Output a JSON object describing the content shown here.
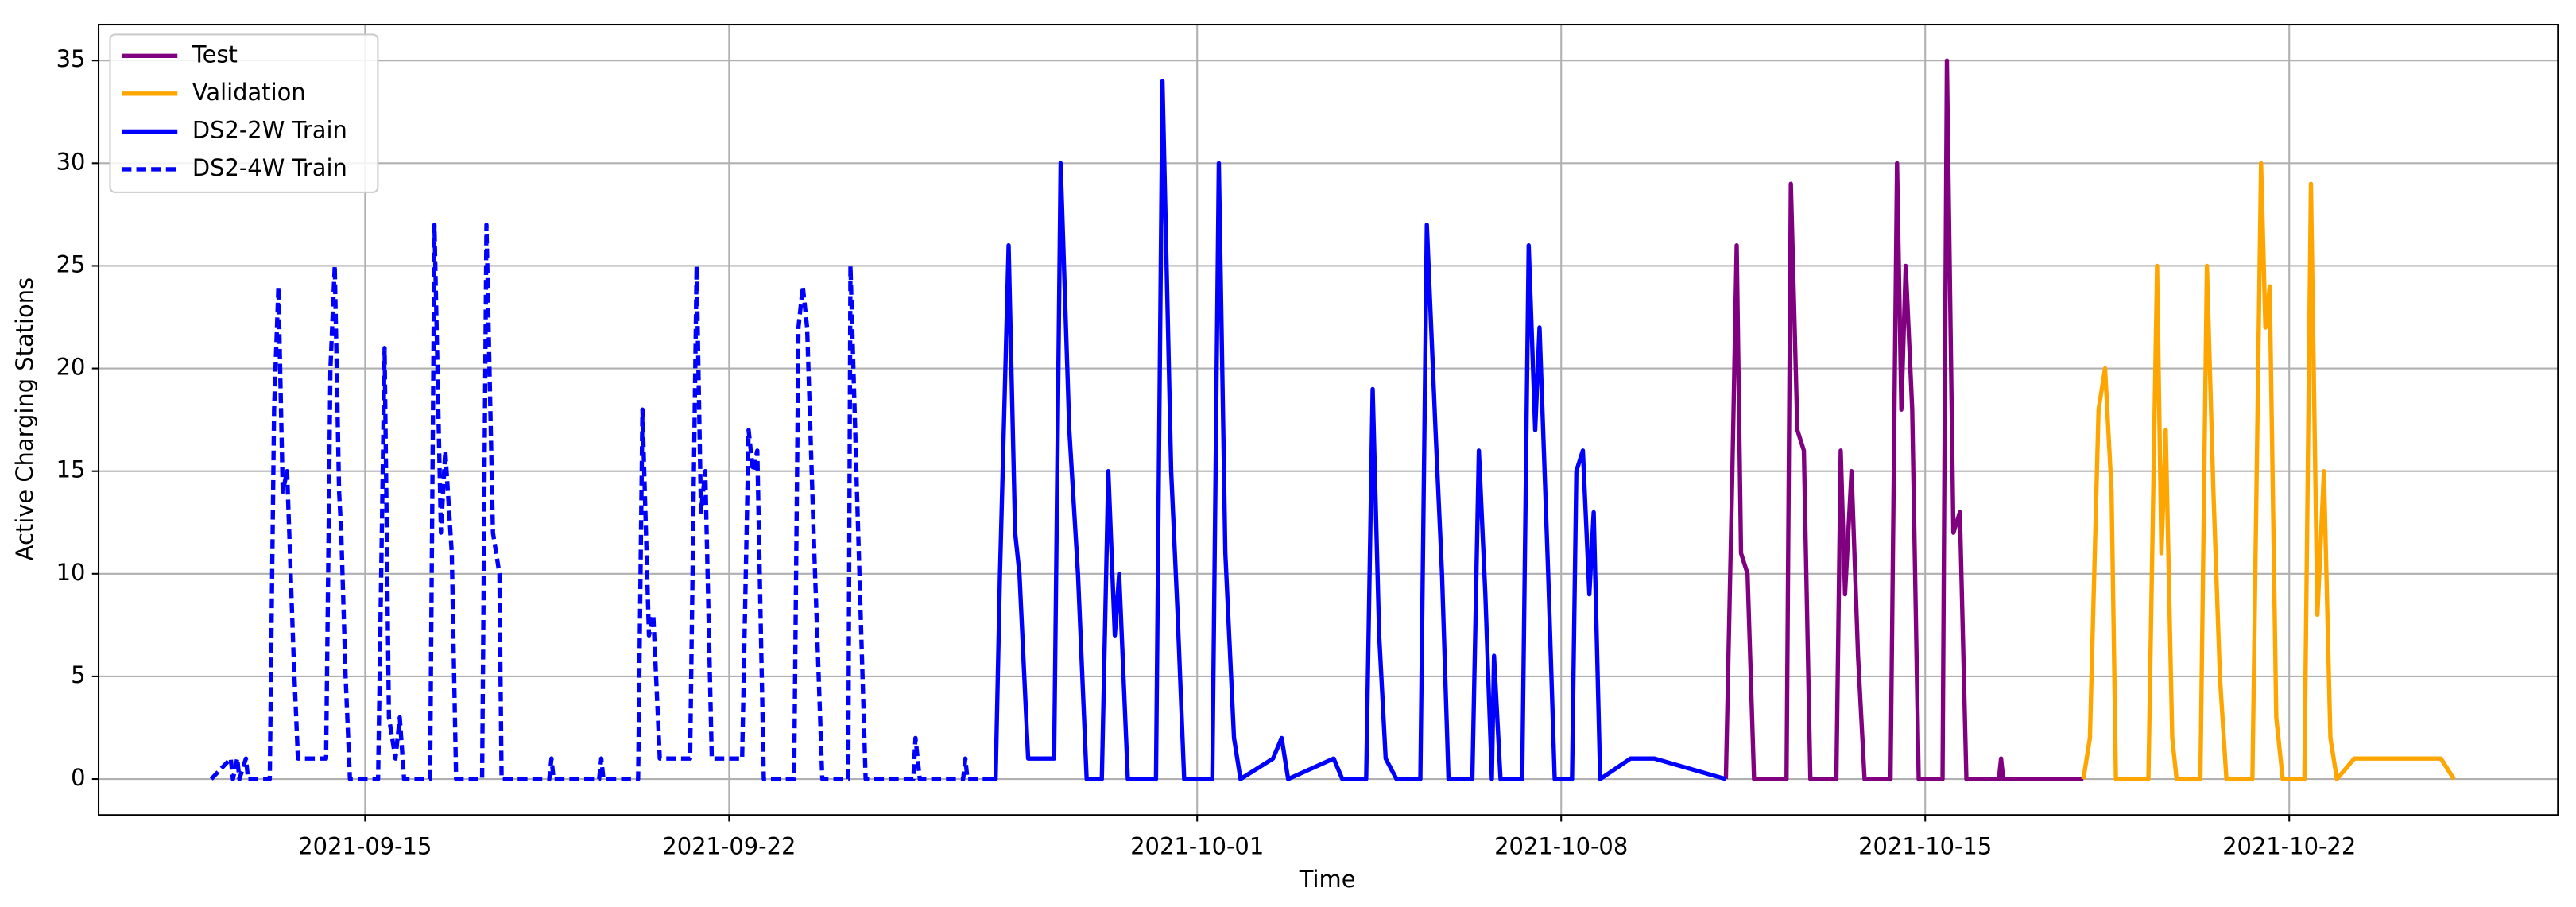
{
  "chart_data": {
    "type": "line",
    "x_label": "Time",
    "y_label": "Active Charging Stations",
    "grid": true,
    "legend": "upper left",
    "xlim": [
      "2021-09-09 21:00",
      "2021-10-27 04:00"
    ],
    "ylim": [
      -1.75,
      36.75
    ],
    "xticks": [
      "2021-09-15",
      "2021-09-22",
      "2021-10-01",
      "2021-10-08",
      "2021-10-15",
      "2021-10-22"
    ],
    "yticks": [
      0,
      5,
      10,
      15,
      20,
      25,
      30,
      35
    ],
    "series": [
      {
        "name": "Test",
        "color": "#800080",
        "dash": false,
        "x": [
          "2021-10-11 04:00",
          "2021-10-11 07:00",
          "2021-10-11 09:00",
          "2021-10-11 11:00",
          "2021-10-11 14:00",
          "2021-10-11 17:00",
          "2021-10-12 08:00",
          "2021-10-12 10:00",
          "2021-10-12 13:00",
          "2021-10-12 16:00",
          "2021-10-12 19:00",
          "2021-10-13 07:00",
          "2021-10-13 09:00",
          "2021-10-13 11:00",
          "2021-10-13 14:00",
          "2021-10-13 17:00",
          "2021-10-13 20:00",
          "2021-10-14 08:00",
          "2021-10-14 11:00",
          "2021-10-14 13:00",
          "2021-10-14 15:00",
          "2021-10-14 18:00",
          "2021-10-14 21:00",
          "2021-10-15 08:00",
          "2021-10-15 10:00",
          "2021-10-15 13:00",
          "2021-10-15 16:00",
          "2021-10-15 19:00",
          "2021-10-16 10:00",
          "2021-10-16 11:00",
          "2021-10-16 12:00",
          "2021-10-18 01:00"
        ],
        "values": [
          0,
          15,
          26,
          11,
          10,
          0,
          0,
          29,
          17,
          16,
          0,
          0,
          16,
          9,
          15,
          6,
          0,
          0,
          30,
          18,
          25,
          18,
          0,
          0,
          35,
          12,
          13,
          0,
          0,
          1,
          0,
          0
        ]
      },
      {
        "name": "Validation",
        "color": "#ffa500",
        "dash": false,
        "x": [
          "2021-10-18 01:00",
          "2021-10-18 04:00",
          "2021-10-18 08:00",
          "2021-10-18 11:00",
          "2021-10-18 14:00",
          "2021-10-18 16:00",
          "2021-10-19 07:00",
          "2021-10-19 11:00",
          "2021-10-19 13:00",
          "2021-10-19 15:00",
          "2021-10-19 18:00",
          "2021-10-19 20:00",
          "2021-10-20 07:00",
          "2021-10-20 10:00",
          "2021-10-20 13:00",
          "2021-10-20 16:00",
          "2021-10-20 19:00",
          "2021-10-21 07:00",
          "2021-10-21 11:00",
          "2021-10-21 13:00",
          "2021-10-21 15:00",
          "2021-10-21 18:00",
          "2021-10-21 21:00",
          "2021-10-22 07:00",
          "2021-10-22 10:00",
          "2021-10-22 13:00",
          "2021-10-22 16:00",
          "2021-10-22 19:00",
          "2021-10-22 22:00",
          "2021-10-23 06:00",
          "2021-10-23 14:00",
          "2021-10-24 16:00",
          "2021-10-24 22:00",
          "2021-10-25 04:00"
        ],
        "values": [
          0,
          2,
          18,
          20,
          14,
          0,
          0,
          25,
          11,
          17,
          2,
          0,
          0,
          25,
          14,
          5,
          0,
          0,
          30,
          22,
          24,
          3,
          0,
          0,
          29,
          8,
          15,
          2,
          0,
          1,
          1,
          1,
          1,
          0
        ]
      },
      {
        "name": "DS2-2W Train",
        "color": "#0000ff",
        "dash": false,
        "x": [
          "2021-09-26 21:00",
          "2021-09-27 03:00",
          "2021-09-27 05:00",
          "2021-09-27 09:00",
          "2021-09-27 12:00",
          "2021-09-27 14:00",
          "2021-09-27 18:00",
          "2021-09-28 06:00",
          "2021-09-28 09:00",
          "2021-09-28 13:00",
          "2021-09-28 17:00",
          "2021-09-28 21:00",
          "2021-09-29 04:00",
          "2021-09-29 07:00",
          "2021-09-29 10:00",
          "2021-09-29 12:00",
          "2021-09-29 16:00",
          "2021-09-30 05:00",
          "2021-09-30 08:00",
          "2021-09-30 12:00",
          "2021-09-30 15:00",
          "2021-09-30 18:00",
          "2021-10-01 07:00",
          "2021-10-01 10:00",
          "2021-10-01 13:00",
          "2021-10-01 17:00",
          "2021-10-01 20:00",
          "2021-10-02 11:00",
          "2021-10-02 15:00",
          "2021-10-02 18:00",
          "2021-10-03 15:00",
          "2021-10-03 19:00",
          "2021-10-04 06:00",
          "2021-10-04 09:00",
          "2021-10-04 12:00",
          "2021-10-04 15:00",
          "2021-10-04 20:00",
          "2021-10-05 07:00",
          "2021-10-05 10:00",
          "2021-10-05 14:00",
          "2021-10-05 17:00",
          "2021-10-05 20:00",
          "2021-10-06 07:00",
          "2021-10-06 10:00",
          "2021-10-06 13:00",
          "2021-10-06 16:00",
          "2021-10-06 17:00",
          "2021-10-06 20:00",
          "2021-10-07 06:00",
          "2021-10-07 09:00",
          "2021-10-07 12:00",
          "2021-10-07 14:00",
          "2021-10-07 18:00",
          "2021-10-07 21:00",
          "2021-10-08 05:00",
          "2021-10-08 07:00",
          "2021-10-08 10:00",
          "2021-10-08 13:00",
          "2021-10-08 15:00",
          "2021-10-08 18:00",
          "2021-10-09 08:00",
          "2021-10-09 19:00",
          "2021-10-11 04:00"
        ],
        "values": [
          0,
          0,
          10,
          26,
          12,
          10,
          1,
          1,
          30,
          17,
          10,
          0,
          0,
          15,
          7,
          10,
          0,
          0,
          34,
          15,
          8,
          0,
          0,
          30,
          11,
          2,
          0,
          1,
          2,
          0,
          1,
          0,
          0,
          19,
          7,
          1,
          0,
          0,
          27,
          17,
          10,
          0,
          0,
          16,
          9,
          0,
          6,
          0,
          0,
          26,
          17,
          22,
          10,
          0,
          0,
          15,
          16,
          9,
          13,
          0,
          1,
          1,
          0
        ]
      },
      {
        "name": "DS2-4W Train",
        "color": "#0000ff",
        "dash": true,
        "x": [
          "2021-09-12 01:00",
          "2021-09-12 10:00",
          "2021-09-12 11:00",
          "2021-09-12 13:00",
          "2021-09-12 14:00",
          "2021-09-12 17:00",
          "2021-09-12 18:00",
          "2021-09-13 04:00",
          "2021-09-13 06:00",
          "2021-09-13 08:00",
          "2021-09-13 10:00",
          "2021-09-13 12:00",
          "2021-09-13 15:00",
          "2021-09-13 17:00",
          "2021-09-14 06:00",
          "2021-09-14 08:00",
          "2021-09-14 10:00",
          "2021-09-14 12:00",
          "2021-09-14 13:00",
          "2021-09-14 15:00",
          "2021-09-14 17:00",
          "2021-09-15 06:00",
          "2021-09-15 09:00",
          "2021-09-15 11:00",
          "2021-09-15 14:00",
          "2021-09-15 16:00",
          "2021-09-15 18:00",
          "2021-09-16 06:00",
          "2021-09-16 08:00",
          "2021-09-16 11:00",
          "2021-09-16 13:00",
          "2021-09-16 16:00",
          "2021-09-16 18:00",
          "2021-09-17 06:00",
          "2021-09-17 08:00",
          "2021-09-17 11:00",
          "2021-09-17 14:00",
          "2021-09-17 15:00",
          "2021-09-18 13:00",
          "2021-09-18 14:00",
          "2021-09-18 15:00",
          "2021-09-19 12:00",
          "2021-09-19 13:00",
          "2021-09-19 14:00",
          "2021-09-20 06:00",
          "2021-09-20 08:00",
          "2021-09-20 11:00",
          "2021-09-20 13:00",
          "2021-09-20 16:00",
          "2021-09-21 06:00",
          "2021-09-21 09:00",
          "2021-09-21 11:00",
          "2021-09-21 13:00",
          "2021-09-21 16:00",
          "2021-09-22 06:00",
          "2021-09-22 09:00",
          "2021-09-22 11:00",
          "2021-09-22 13:00",
          "2021-09-22 16:00",
          "2021-09-23 06:00",
          "2021-09-23 08:00",
          "2021-09-23 10:00",
          "2021-09-23 12:00",
          "2021-09-23 15:00",
          "2021-09-23 17:00",
          "2021-09-23 19:00",
          "2021-09-24 07:00",
          "2021-09-24 08:00",
          "2021-09-24 11:00",
          "2021-09-24 13:00",
          "2021-09-24 15:00",
          "2021-09-25 13:00",
          "2021-09-25 14:00",
          "2021-09-25 16:00",
          "2021-09-26 12:00",
          "2021-09-26 13:00",
          "2021-09-26 14:00",
          "2021-09-26 23:00"
        ],
        "values": [
          0,
          1,
          0,
          1,
          0,
          1,
          0,
          0,
          18,
          24,
          14,
          15,
          6,
          1,
          1,
          20,
          25,
          14,
          12,
          5,
          0,
          0,
          21,
          3,
          1,
          3,
          0,
          0,
          27,
          12,
          16,
          11,
          0,
          0,
          27,
          12,
          10,
          0,
          0,
          1,
          0,
          0,
          1,
          0,
          0,
          18,
          7,
          8,
          1,
          1,
          25,
          13,
          15,
          1,
          1,
          17,
          15,
          16,
          0,
          0,
          22,
          24,
          22,
          12,
          6,
          0,
          0,
          25,
          14,
          7,
          0,
          0,
          2,
          0,
          0,
          1,
          0,
          0
        ]
      }
    ]
  }
}
